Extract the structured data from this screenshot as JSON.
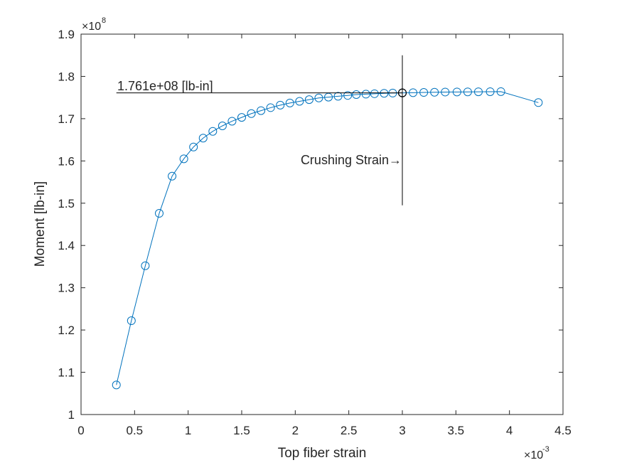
{
  "chart_data": {
    "type": "line",
    "xlabel": "Top fiber strain",
    "ylabel": "Moment [lb-in]",
    "x_exponent_base": "×10",
    "x_exponent": "-3",
    "y_exponent_base": "×10",
    "y_exponent": "8",
    "xlim": [
      0,
      4.5
    ],
    "ylim": [
      1.0,
      1.9
    ],
    "x_ticks": [
      0,
      0.5,
      1,
      1.5,
      2,
      2.5,
      3,
      3.5,
      4,
      4.5
    ],
    "x_tick_labels": [
      "0",
      "0.5",
      "1",
      "1.5",
      "2",
      "2.5",
      "3",
      "3.5",
      "4",
      "4.5"
    ],
    "y_ticks": [
      1.0,
      1.1,
      1.2,
      1.3,
      1.4,
      1.5,
      1.6,
      1.7,
      1.8,
      1.9
    ],
    "y_tick_labels": [
      "1",
      "1.1",
      "1.2",
      "1.3",
      "1.4",
      "1.5",
      "1.6",
      "1.7",
      "1.8",
      "1.9"
    ],
    "series": [
      {
        "color": "#0072bd",
        "marker": "circle",
        "x": [
          0.33,
          0.47,
          0.6,
          0.73,
          0.85,
          0.96,
          1.05,
          1.14,
          1.23,
          1.32,
          1.41,
          1.5,
          1.59,
          1.68,
          1.77,
          1.86,
          1.95,
          2.04,
          2.13,
          2.22,
          2.31,
          2.4,
          2.49,
          2.57,
          2.66,
          2.74,
          2.83,
          2.91,
          3.0,
          3.1,
          3.2,
          3.3,
          3.4,
          3.51,
          3.61,
          3.71,
          3.82,
          3.92,
          4.27
        ],
        "y": [
          1.07,
          1.222,
          1.352,
          1.476,
          1.564,
          1.605,
          1.633,
          1.654,
          1.67,
          1.683,
          1.694,
          1.703,
          1.712,
          1.719,
          1.726,
          1.732,
          1.737,
          1.741,
          1.745,
          1.749,
          1.751,
          1.753,
          1.755,
          1.757,
          1.758,
          1.759,
          1.76,
          1.7605,
          1.761,
          1.7615,
          1.762,
          1.7625,
          1.763,
          1.7632,
          1.7634,
          1.7636,
          1.7638,
          1.764,
          1.738
        ]
      }
    ],
    "annotations": {
      "moment_label": "1.761e+08 [lb-in]",
      "moment_value": 1.761,
      "crushing_label": "Crushing Strain→",
      "crushing_strain": 3.0,
      "vertical_line_ylim": [
        1.495,
        1.85
      ],
      "horizontal_line_x_start": 0.33,
      "highlight_color": "#000000"
    },
    "grid": false,
    "box": true
  }
}
